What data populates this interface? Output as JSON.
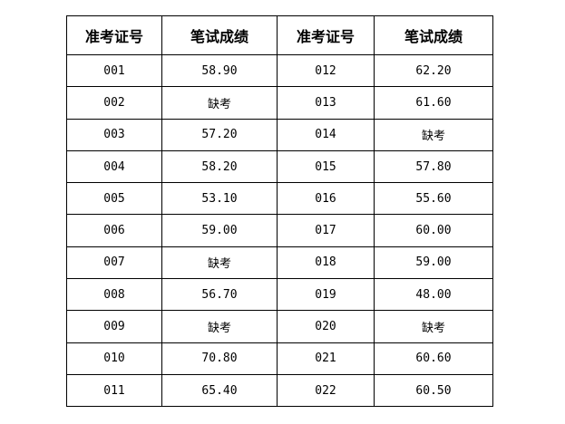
{
  "headers": [
    "准考证号",
    "笔试成绩",
    "准考证号",
    "笔试成绩"
  ],
  "rows": [
    [
      "001",
      "58.90",
      "012",
      "62.20"
    ],
    [
      "002",
      "缺考",
      "013",
      "61.60"
    ],
    [
      "003",
      "57.20",
      "014",
      "缺考"
    ],
    [
      "004",
      "58.20",
      "015",
      "57.80"
    ],
    [
      "005",
      "53.10",
      "016",
      "55.60"
    ],
    [
      "006",
      "59.00",
      "017",
      "60.00"
    ],
    [
      "007",
      "缺考",
      "018",
      "59.00"
    ],
    [
      "008",
      "56.70",
      "019",
      "48.00"
    ],
    [
      "009",
      "缺考",
      "020",
      "缺考"
    ],
    [
      "010",
      "70.80",
      "021",
      "60.60"
    ],
    [
      "011",
      "65.40",
      "022",
      "60.50"
    ]
  ]
}
